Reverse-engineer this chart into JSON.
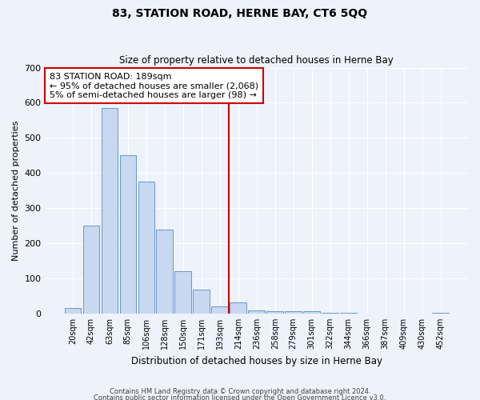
{
  "title": "83, STATION ROAD, HERNE BAY, CT6 5QQ",
  "subtitle": "Size of property relative to detached houses in Herne Bay",
  "xlabel": "Distribution of detached houses by size in Herne Bay",
  "ylabel": "Number of detached properties",
  "bar_color": "#c8d8f0",
  "bar_edge_color": "#6699cc",
  "background_color": "#eef2fb",
  "grid_color": "#ffffff",
  "categories": [
    "20sqm",
    "42sqm",
    "63sqm",
    "85sqm",
    "106sqm",
    "128sqm",
    "150sqm",
    "171sqm",
    "193sqm",
    "214sqm",
    "236sqm",
    "258sqm",
    "279sqm",
    "301sqm",
    "322sqm",
    "344sqm",
    "366sqm",
    "387sqm",
    "409sqm",
    "430sqm",
    "452sqm"
  ],
  "values": [
    15,
    250,
    585,
    450,
    375,
    238,
    120,
    68,
    20,
    31,
    10,
    7,
    6,
    7,
    2,
    3,
    0,
    0,
    0,
    0,
    3
  ],
  "ylim": [
    0,
    700
  ],
  "yticks": [
    0,
    100,
    200,
    300,
    400,
    500,
    600,
    700
  ],
  "property_label": "83 STATION ROAD: 189sqm",
  "annotation_line1": "← 95% of detached houses are smaller (2,068)",
  "annotation_line2": "5% of semi-detached houses are larger (98) →",
  "vline_index": 8,
  "vline_color": "#cc0000",
  "annotation_box_edgecolor": "#cc0000",
  "footnote1": "Contains HM Land Registry data © Crown copyright and database right 2024.",
  "footnote2": "Contains public sector information licensed under the Open Government Licence v3.0."
}
